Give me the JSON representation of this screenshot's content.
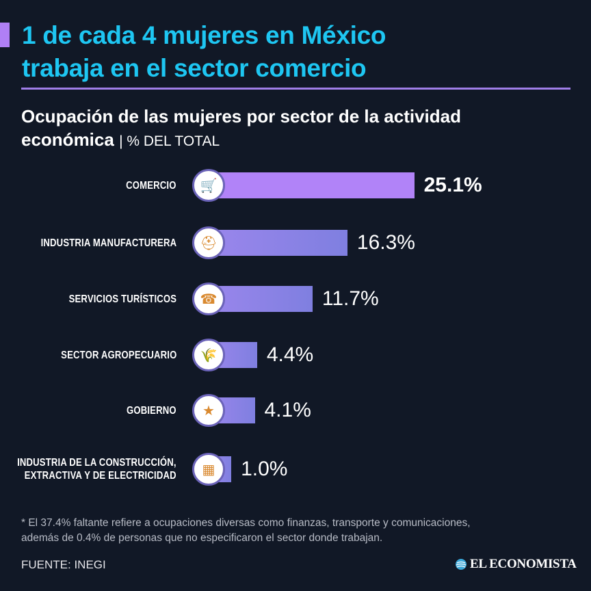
{
  "header": {
    "title_line1": "1 de cada 4 mujeres en México",
    "title_line2": "trabaja en el sector comercio"
  },
  "chart_data": {
    "type": "bar",
    "orientation": "horizontal",
    "title": "Ocupación de las mujeres por sector de la actividad económica",
    "title_line1": "Ocupación de las mujeres por sector de la actividad",
    "title_line2": "económica",
    "unit": "| % DEL TOTAL",
    "categories": [
      "COMERCIO",
      "INDUSTRIA MANUFACTURERA",
      "SERVICIOS TURÍSTICOS",
      "SECTOR AGROPECUARIO",
      "GOBIERNO",
      "INDUSTRIA DE LA CONSTRUCCIÓN, EXTRACTIVA Y DE ELECTRICIDAD"
    ],
    "category_lines": [
      [
        "COMERCIO"
      ],
      [
        "INDUSTRIA MANUFACTURERA"
      ],
      [
        "SERVICIOS TURÍSTICOS"
      ],
      [
        "SECTOR AGROPECUARIO"
      ],
      [
        "GOBIERNO"
      ],
      [
        "INDUSTRIA DE LA CONSTRUCCIÓN,",
        "EXTRACTIVA Y DE ELECTRICIDAD"
      ]
    ],
    "values": [
      25.1,
      16.3,
      11.7,
      4.4,
      4.1,
      1.0
    ],
    "value_labels": [
      "25.1%",
      "16.3%",
      "11.7%",
      "4.4%",
      "4.1%",
      "1.0%"
    ],
    "icons": [
      "cashier-woman-icon",
      "factory-worker-woman-icon",
      "receptionist-woman-icon",
      "farmer-woman-icon",
      "government-woman-icon",
      "construction-blocks-icon"
    ],
    "colors": {
      "highlight": "#b183f8",
      "bar": "#8a82e6",
      "title": "#1ec6f2",
      "background": "#111826"
    },
    "grid": false
  },
  "footer": {
    "note_line1": "* El 37.4% faltante refiere a ocupaciones diversas como finanzas, transporte y comunicaciones,",
    "note_line2": "además de 0.4% de personas que no especificaron el sector donde trabajan.",
    "source": "FUENTE: INEGI",
    "logo": "EL ECONOMISTA"
  }
}
